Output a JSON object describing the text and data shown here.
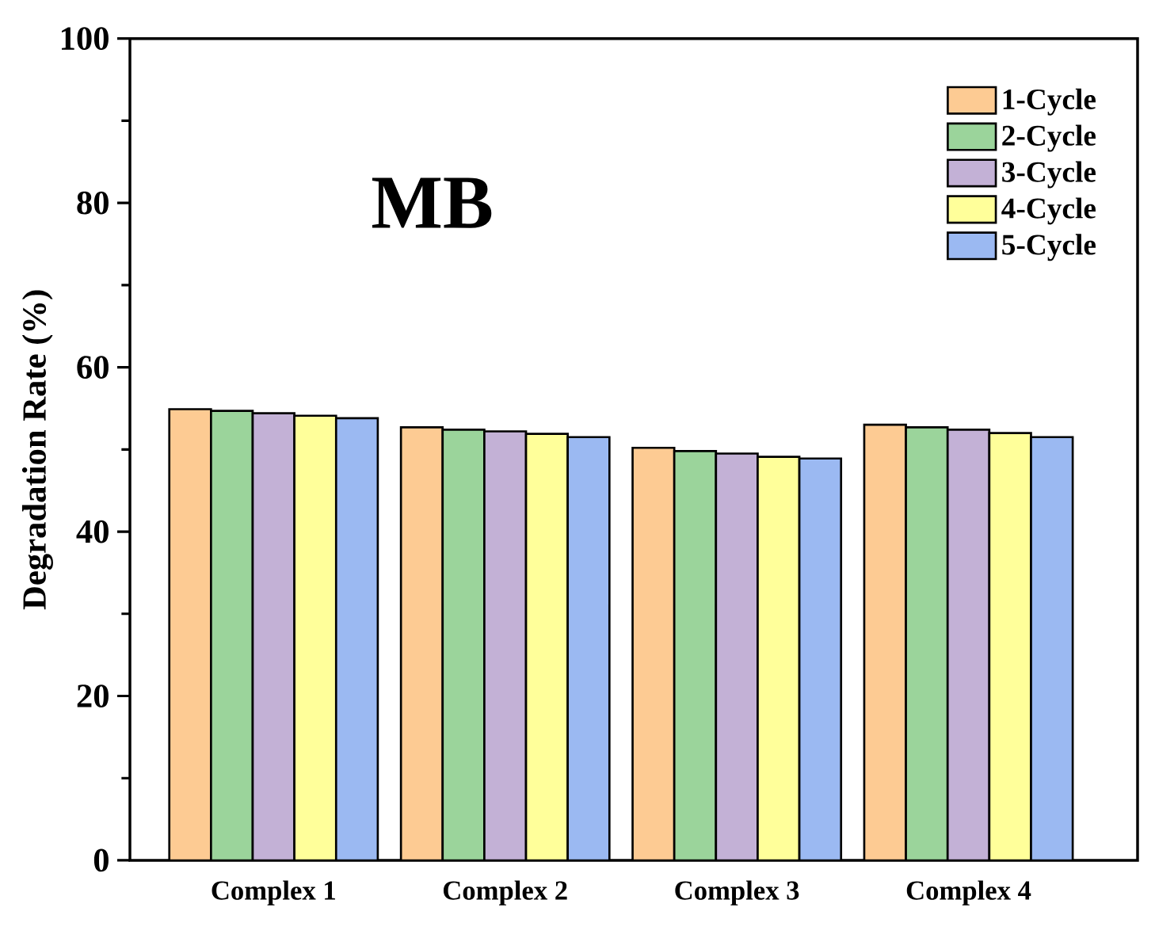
{
  "chart_data": {
    "type": "bar",
    "ylabel": "Degradation Rate (%)",
    "annotations": [
      "MB"
    ],
    "categories": [
      "Complex 1",
      "Complex 2",
      "Complex 3",
      "Complex 4"
    ],
    "series": [
      {
        "name": "1-Cycle",
        "color": "#fdcb93",
        "values": [
          54.9,
          52.7,
          50.2,
          53.0
        ]
      },
      {
        "name": "2-Cycle",
        "color": "#9bd49b",
        "values": [
          54.7,
          52.4,
          49.8,
          52.7
        ]
      },
      {
        "name": "3-Cycle",
        "color": "#c3b1d6",
        "values": [
          54.4,
          52.2,
          49.5,
          52.4
        ]
      },
      {
        "name": "4-Cycle",
        "color": "#ffff9a",
        "values": [
          54.1,
          51.9,
          49.1,
          52.0
        ]
      },
      {
        "name": "5-Cycle",
        "color": "#9bb9f2",
        "values": [
          53.8,
          51.5,
          48.9,
          51.5
        ]
      }
    ],
    "ylim": [
      0,
      100
    ],
    "yticks": [
      0,
      20,
      40,
      60,
      80,
      100
    ],
    "legend": "top right"
  }
}
